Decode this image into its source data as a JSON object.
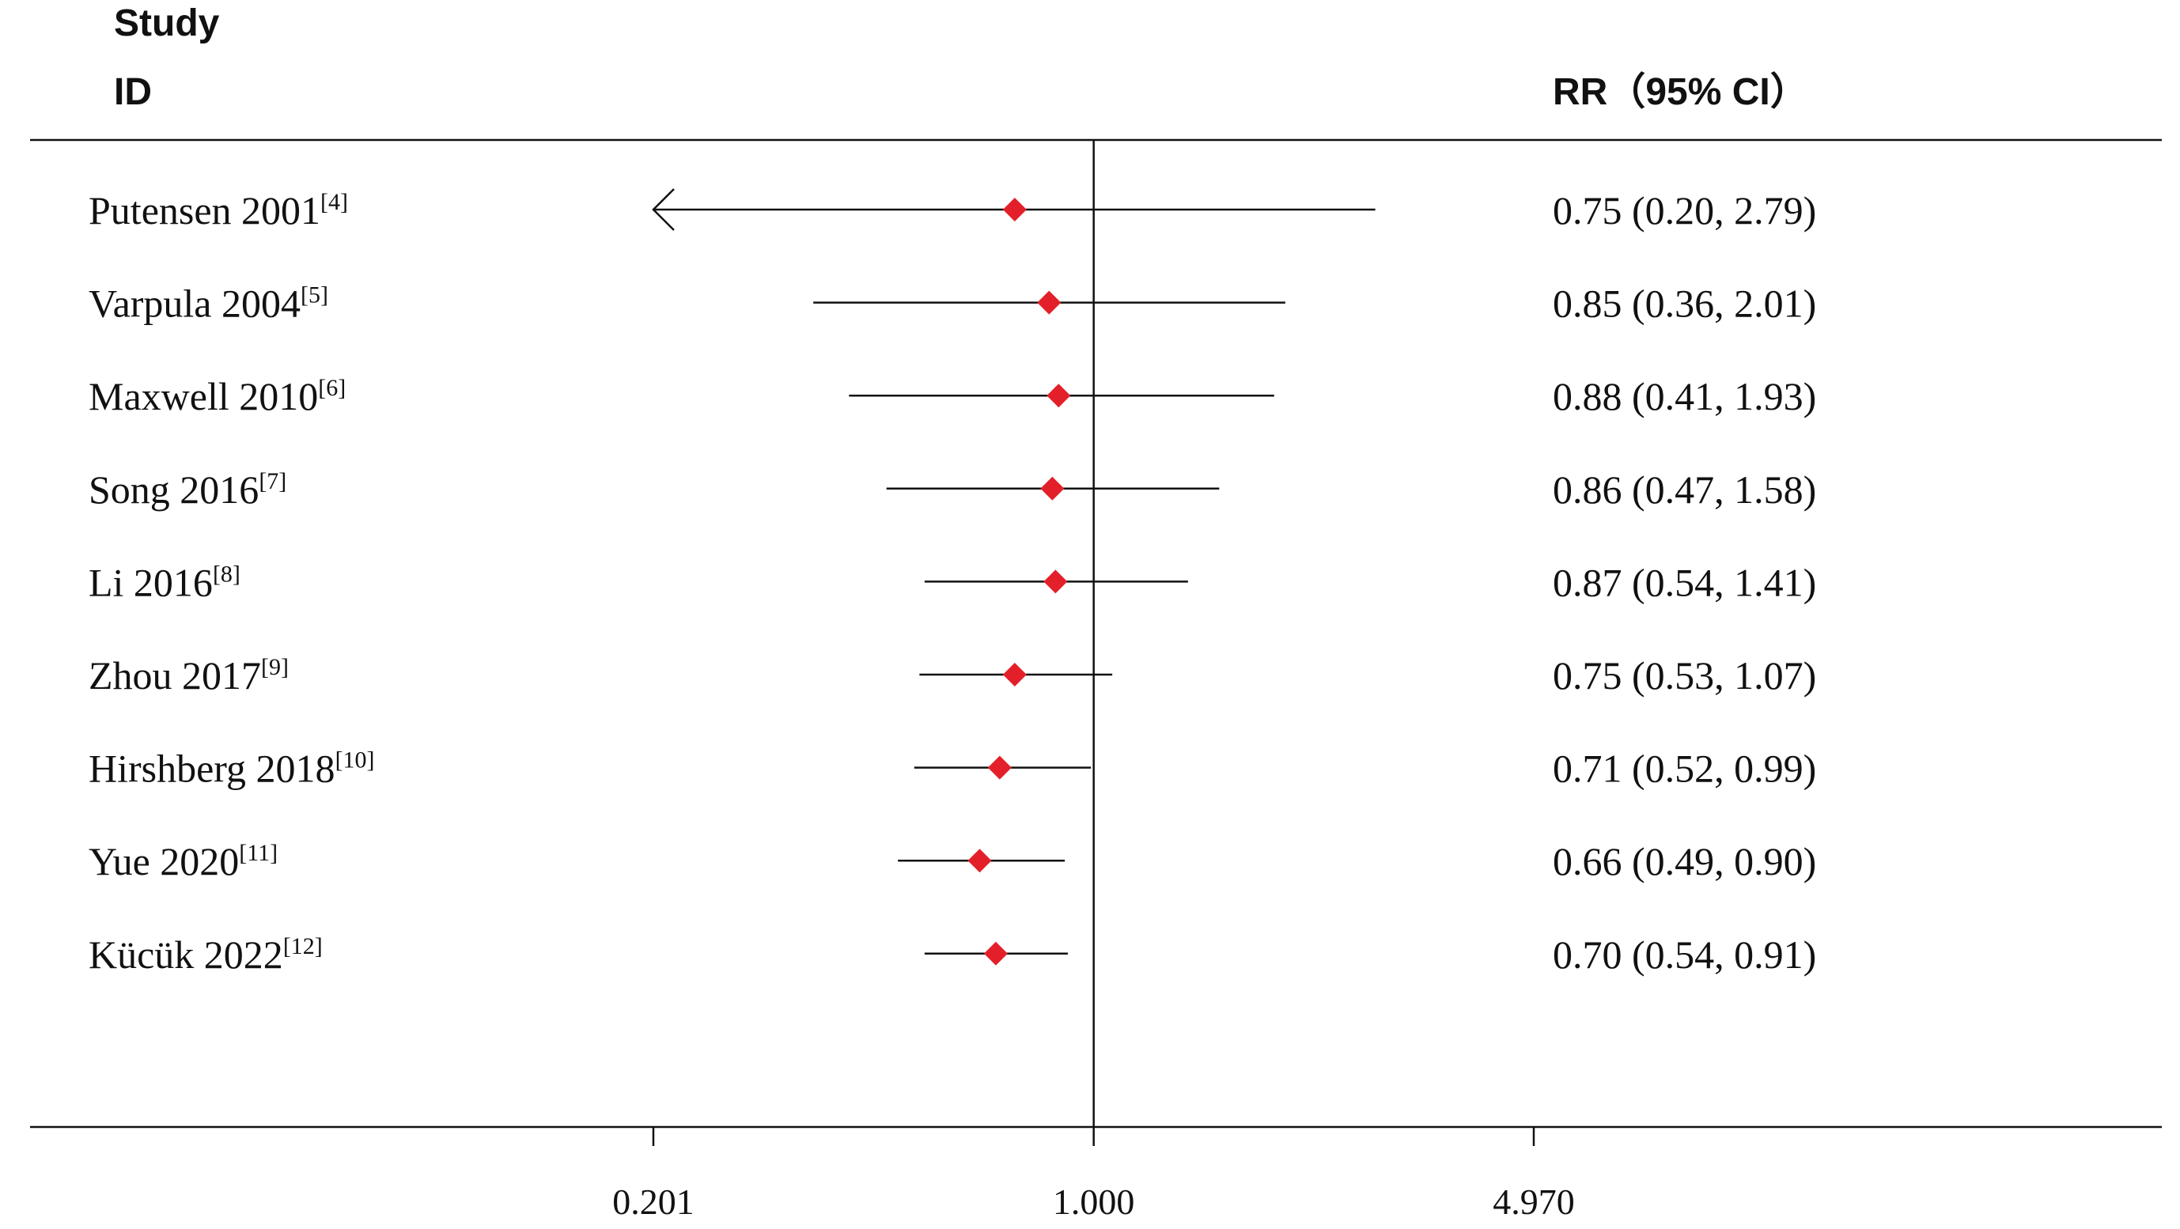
{
  "chart_data": {
    "type": "forest",
    "headers": {
      "study_line1": "Study",
      "study_line2": "ID",
      "effect": "RR（95% CI）"
    },
    "scale": "log",
    "null_value": 1.0,
    "xlim": [
      0.201,
      4.97
    ],
    "ticks": [
      "0.201",
      "1.000",
      "4.970"
    ],
    "marker_color": "#e3202a",
    "studies": [
      {
        "name": "Putensen 2001",
        "ref": "[4]",
        "rr": 0.75,
        "lo": 0.2,
        "hi": 2.79,
        "text": "0.75 (0.20, 2.79)"
      },
      {
        "name": "Varpula 2004",
        "ref": "[5]",
        "rr": 0.85,
        "lo": 0.36,
        "hi": 2.01,
        "text": "0.85 (0.36, 2.01)"
      },
      {
        "name": "Maxwell 2010",
        "ref": "[6]",
        "rr": 0.88,
        "lo": 0.41,
        "hi": 1.93,
        "text": "0.88 (0.41, 1.93)"
      },
      {
        "name": "Song 2016",
        "ref": "[7]",
        "rr": 0.86,
        "lo": 0.47,
        "hi": 1.58,
        "text": "0.86 (0.47, 1.58)"
      },
      {
        "name": "Li 2016",
        "ref": "[8]",
        "rr": 0.87,
        "lo": 0.54,
        "hi": 1.41,
        "text": "0.87 (0.54, 1.41)"
      },
      {
        "name": "Zhou 2017",
        "ref": "[9]",
        "rr": 0.75,
        "lo": 0.53,
        "hi": 1.07,
        "text": "0.75 (0.53, 1.07)"
      },
      {
        "name": "Hirshberg 2018",
        "ref": "[10]",
        "rr": 0.71,
        "lo": 0.52,
        "hi": 0.99,
        "text": "0.71 (0.52, 0.99)"
      },
      {
        "name": "Yue 2020",
        "ref": "[11]",
        "rr": 0.66,
        "lo": 0.49,
        "hi": 0.9,
        "text": "0.66 (0.49, 0.90)"
      },
      {
        "name": "Kücük 2022",
        "ref": "[12]",
        "rr": 0.7,
        "lo": 0.54,
        "hi": 0.91,
        "text": "0.70 (0.54, 0.91)"
      }
    ]
  }
}
